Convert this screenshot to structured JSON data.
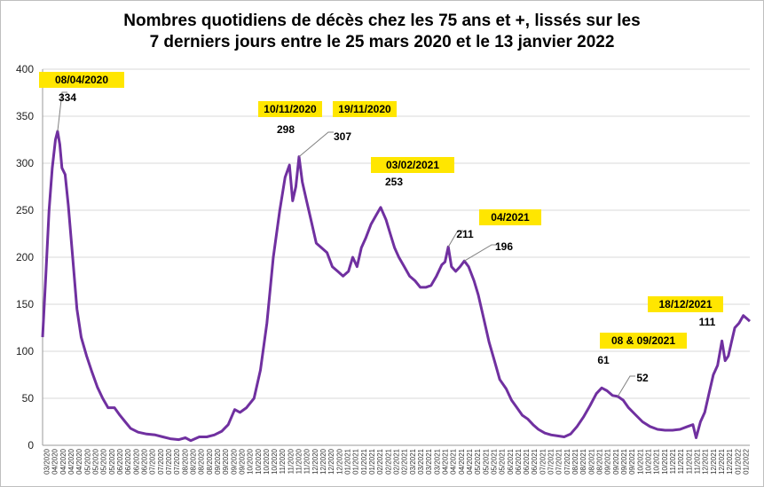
{
  "chart_data": {
    "type": "line",
    "title_lines": [
      "Nombres quotidiens de décès chez les 75 ans et +, lissés sur les",
      "7 derniers jours entre le 25 mars 2020 et le 13 janvier 2022"
    ],
    "xlabel": "",
    "ylabel": "",
    "ylim": [
      0,
      400
    ],
    "yticks": [
      0,
      50,
      100,
      150,
      200,
      250,
      300,
      350,
      400
    ],
    "grid": "horizontal",
    "legend": "none",
    "line_color": "#7030a0",
    "highlight_color": "#ffe600",
    "x_range": [
      "2020-03-25",
      "2022-01-13"
    ],
    "x_tick_labels": [
      "03/2020",
      "04/2020",
      "04/2020",
      "04/2020",
      "04/2020",
      "05/2020",
      "05/2020",
      "05/2020",
      "05/2020",
      "06/2020",
      "06/2020",
      "06/2020",
      "06/2020",
      "07/2020",
      "07/2020",
      "07/2020",
      "07/2020",
      "08/2020",
      "08/2020",
      "08/2020",
      "08/2020",
      "09/2020",
      "09/2020",
      "09/2020",
      "09/2020",
      "10/2020",
      "10/2020",
      "10/2020",
      "10/2020",
      "11/2020",
      "11/2020",
      "11/2020",
      "11/2020",
      "12/2020",
      "12/2020",
      "12/2020",
      "12/2020",
      "01/2021",
      "01/2021",
      "01/2021",
      "01/2021",
      "02/2021",
      "02/2021",
      "02/2021",
      "02/2021",
      "03/2021",
      "03/2021",
      "03/2021",
      "03/2021",
      "04/2021",
      "04/2021",
      "04/2021",
      "04/2021",
      "05/2021",
      "05/2021",
      "05/2021",
      "05/2021",
      "06/2021",
      "06/2021",
      "06/2021",
      "06/2021",
      "07/2021",
      "07/2021",
      "07/2021",
      "07/2021",
      "08/2021",
      "08/2021",
      "08/2021",
      "08/2021",
      "09/2021",
      "09/2021",
      "09/2021",
      "09/2021",
      "10/2021",
      "10/2021",
      "10/2021",
      "10/2021",
      "11/2021",
      "11/2021",
      "11/2021",
      "11/2021",
      "12/2021",
      "12/2021",
      "12/2021",
      "12/2021",
      "01/2022",
      "01/2022"
    ],
    "series": [
      {
        "points": [
          [
            "2020-03-25",
            115
          ],
          [
            "2020-03-28",
            180
          ],
          [
            "2020-03-31",
            250
          ],
          [
            "2020-04-03",
            295
          ],
          [
            "2020-04-06",
            325
          ],
          [
            "2020-04-08",
            334
          ],
          [
            "2020-04-10",
            320
          ],
          [
            "2020-04-12",
            295
          ],
          [
            "2020-04-15",
            288
          ],
          [
            "2020-04-18",
            255
          ],
          [
            "2020-04-22",
            200
          ],
          [
            "2020-04-26",
            145
          ],
          [
            "2020-04-30",
            115
          ],
          [
            "2020-05-05",
            95
          ],
          [
            "2020-05-10",
            78
          ],
          [
            "2020-05-15",
            62
          ],
          [
            "2020-05-20",
            50
          ],
          [
            "2020-05-25",
            40
          ],
          [
            "2020-05-31",
            40
          ],
          [
            "2020-06-05",
            32
          ],
          [
            "2020-06-10",
            25
          ],
          [
            "2020-06-15",
            18
          ],
          [
            "2020-06-22",
            14
          ],
          [
            "2020-06-30",
            12
          ],
          [
            "2020-07-08",
            11
          ],
          [
            "2020-07-15",
            9
          ],
          [
            "2020-07-22",
            7
          ],
          [
            "2020-07-30",
            6
          ],
          [
            "2020-08-05",
            8
          ],
          [
            "2020-08-10",
            5
          ],
          [
            "2020-08-18",
            9
          ],
          [
            "2020-08-25",
            9
          ],
          [
            "2020-09-01",
            11
          ],
          [
            "2020-09-08",
            15
          ],
          [
            "2020-09-14",
            22
          ],
          [
            "2020-09-20",
            38
          ],
          [
            "2020-09-25",
            35
          ],
          [
            "2020-10-01",
            40
          ],
          [
            "2020-10-08",
            50
          ],
          [
            "2020-10-14",
            80
          ],
          [
            "2020-10-20",
            130
          ],
          [
            "2020-10-26",
            200
          ],
          [
            "2020-11-01",
            250
          ],
          [
            "2020-11-06",
            285
          ],
          [
            "2020-11-10",
            298
          ],
          [
            "2020-11-13",
            260
          ],
          [
            "2020-11-16",
            275
          ],
          [
            "2020-11-19",
            307
          ],
          [
            "2020-11-22",
            280
          ],
          [
            "2020-11-26",
            260
          ],
          [
            "2020-11-30",
            240
          ],
          [
            "2020-12-05",
            215
          ],
          [
            "2020-12-10",
            210
          ],
          [
            "2020-12-15",
            205
          ],
          [
            "2020-12-20",
            190
          ],
          [
            "2020-12-25",
            185
          ],
          [
            "2020-12-30",
            180
          ],
          [
            "2021-01-04",
            185
          ],
          [
            "2021-01-08",
            200
          ],
          [
            "2021-01-12",
            190
          ],
          [
            "2021-01-16",
            210
          ],
          [
            "2021-01-20",
            220
          ],
          [
            "2021-01-25",
            235
          ],
          [
            "2021-01-30",
            245
          ],
          [
            "2021-02-03",
            253
          ],
          [
            "2021-02-08",
            240
          ],
          [
            "2021-02-12",
            225
          ],
          [
            "2021-02-16",
            210
          ],
          [
            "2021-02-20",
            200
          ],
          [
            "2021-02-25",
            190
          ],
          [
            "2021-03-02",
            180
          ],
          [
            "2021-03-07",
            175
          ],
          [
            "2021-03-12",
            168
          ],
          [
            "2021-03-17",
            168
          ],
          [
            "2021-03-22",
            170
          ],
          [
            "2021-03-27",
            180
          ],
          [
            "2021-04-01",
            192
          ],
          [
            "2021-04-04",
            195
          ],
          [
            "2021-04-07",
            211
          ],
          [
            "2021-04-10",
            190
          ],
          [
            "2021-04-14",
            185
          ],
          [
            "2021-04-18",
            190
          ],
          [
            "2021-04-22",
            196
          ],
          [
            "2021-04-26",
            190
          ],
          [
            "2021-05-01",
            175
          ],
          [
            "2021-05-05",
            160
          ],
          [
            "2021-05-10",
            135
          ],
          [
            "2021-05-15",
            110
          ],
          [
            "2021-05-20",
            90
          ],
          [
            "2021-05-25",
            70
          ],
          [
            "2021-05-31",
            60
          ],
          [
            "2021-06-05",
            48
          ],
          [
            "2021-06-10",
            40
          ],
          [
            "2021-06-15",
            32
          ],
          [
            "2021-06-20",
            28
          ],
          [
            "2021-06-25",
            22
          ],
          [
            "2021-06-30",
            17
          ],
          [
            "2021-07-06",
            13
          ],
          [
            "2021-07-12",
            11
          ],
          [
            "2021-07-18",
            10
          ],
          [
            "2021-07-24",
            9
          ],
          [
            "2021-07-30",
            12
          ],
          [
            "2021-08-05",
            20
          ],
          [
            "2021-08-11",
            30
          ],
          [
            "2021-08-17",
            42
          ],
          [
            "2021-08-23",
            55
          ],
          [
            "2021-08-28",
            61
          ],
          [
            "2021-09-02",
            58
          ],
          [
            "2021-09-07",
            53
          ],
          [
            "2021-09-12",
            52
          ],
          [
            "2021-09-17",
            48
          ],
          [
            "2021-09-22",
            40
          ],
          [
            "2021-09-28",
            33
          ],
          [
            "2021-10-05",
            25
          ],
          [
            "2021-10-12",
            20
          ],
          [
            "2021-10-19",
            17
          ],
          [
            "2021-10-26",
            16
          ],
          [
            "2021-11-02",
            16
          ],
          [
            "2021-11-09",
            17
          ],
          [
            "2021-11-16",
            20
          ],
          [
            "2021-11-21",
            22
          ],
          [
            "2021-11-24",
            8
          ],
          [
            "2021-11-28",
            25
          ],
          [
            "2021-12-02",
            35
          ],
          [
            "2021-12-06",
            55
          ],
          [
            "2021-12-10",
            75
          ],
          [
            "2021-12-14",
            85
          ],
          [
            "2021-12-18",
            111
          ],
          [
            "2021-12-21",
            90
          ],
          [
            "2021-12-24",
            95
          ],
          [
            "2021-12-27",
            110
          ],
          [
            "2021-12-30",
            125
          ],
          [
            "2022-01-03",
            130
          ],
          [
            "2022-01-07",
            138
          ],
          [
            "2022-01-10",
            135
          ],
          [
            "2022-01-13",
            132
          ]
        ]
      }
    ],
    "annotations": [
      {
        "date_label": "08/04/2020",
        "value_label": "334",
        "x": "2020-04-08",
        "y": 334
      },
      {
        "date_label": "10/11/2020",
        "value_label": "298",
        "x": "2020-11-10",
        "y": 298
      },
      {
        "date_label": "19/11/2020",
        "value_label": "307",
        "x": "2020-11-19",
        "y": 307
      },
      {
        "date_label": "03/02/2021",
        "value_label": "253",
        "x": "2021-02-03",
        "y": 253
      },
      {
        "date_label": "04/2021",
        "value_label": "211",
        "x": "2021-04-07",
        "y": 211
      },
      {
        "date_label": "",
        "value_label": "196",
        "x": "2021-04-22",
        "y": 196
      },
      {
        "date_label": "08 & 09/2021",
        "value_label": "61",
        "x": "2021-08-28",
        "y": 61
      },
      {
        "date_label": "",
        "value_label": "52",
        "x": "2021-09-12",
        "y": 52
      },
      {
        "date_label": "18/12/2021",
        "value_label": "111",
        "x": "2021-12-18",
        "y": 111
      }
    ]
  }
}
